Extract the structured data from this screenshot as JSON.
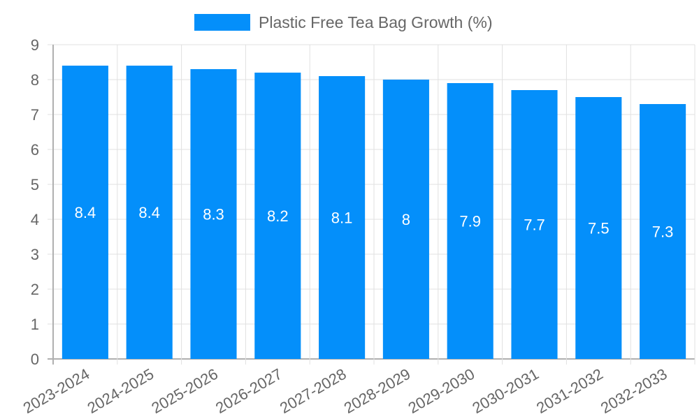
{
  "chart_data": {
    "type": "bar",
    "title": "",
    "legend": {
      "position": "top",
      "entries": [
        "Plastic Free Tea Bag Growth (%)"
      ]
    },
    "categories": [
      "2023-2024",
      "2024-2025",
      "2025-2026",
      "2026-2027",
      "2027-2028",
      "2028-2029",
      "2029-2030",
      "2030-2031",
      "2031-2032",
      "2032-2033"
    ],
    "series": [
      {
        "name": "Plastic Free Tea Bag Growth (%)",
        "color": "#048ffa",
        "values": [
          8.4,
          8.4,
          8.3,
          8.2,
          8.1,
          8,
          7.9,
          7.7,
          7.5,
          7.3
        ]
      }
    ],
    "data_labels": [
      "8.4",
      "8.4",
      "8.3",
      "8.2",
      "8.1",
      "8",
      "7.9",
      "7.7",
      "7.5",
      "7.3"
    ],
    "xlabel": "",
    "ylabel": "",
    "ylim": [
      0,
      9
    ],
    "yticks": [
      "0",
      "1",
      "2",
      "3",
      "4",
      "5",
      "6",
      "7",
      "8",
      "9"
    ],
    "grid": true,
    "xtick_rotation": -30
  }
}
